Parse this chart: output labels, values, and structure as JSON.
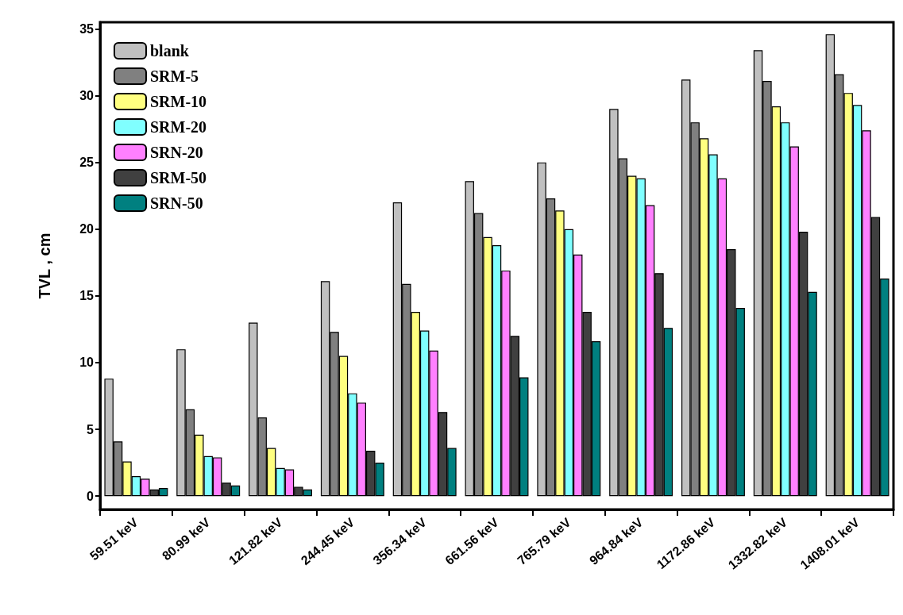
{
  "chart_data": {
    "type": "bar",
    "ylabel": "TVL , cm",
    "categories": [
      "59.51 keV",
      "80.99 keV",
      "121.82 keV",
      "244.45 keV",
      "356.34 keV",
      "661.56 keV",
      "765.79 keV",
      "964.84 keV",
      "1172.86 keV",
      "1332.82 keV",
      "1408.01 keV"
    ],
    "series": [
      {
        "name": "blank",
        "color": "#c0c0c0",
        "values": [
          8.8,
          11.0,
          13.0,
          16.1,
          22.0,
          23.6,
          25.0,
          29.0,
          31.2,
          33.4,
          34.6
        ]
      },
      {
        "name": "SRM-5",
        "color": "#808080",
        "values": [
          4.1,
          6.5,
          5.9,
          12.3,
          15.9,
          21.2,
          22.3,
          25.3,
          28.0,
          31.1,
          31.6
        ]
      },
      {
        "name": "SRM-10",
        "color": "#ffff80",
        "values": [
          2.6,
          4.6,
          3.6,
          10.5,
          13.8,
          19.4,
          21.4,
          24.0,
          26.8,
          29.2,
          30.2
        ]
      },
      {
        "name": "SRM-20",
        "color": "#80ffff",
        "values": [
          1.5,
          3.0,
          2.1,
          7.7,
          12.4,
          18.8,
          20.0,
          23.8,
          25.6,
          28.0,
          29.3
        ]
      },
      {
        "name": "SRN-20",
        "color": "#ff80ff",
        "values": [
          1.3,
          2.9,
          2.0,
          7.0,
          10.9,
          16.9,
          18.1,
          21.8,
          23.8,
          26.2,
          27.4
        ]
      },
      {
        "name": "SRM-50",
        "color": "#404040",
        "values": [
          0.5,
          1.0,
          0.7,
          3.4,
          6.3,
          12.0,
          13.8,
          16.7,
          18.5,
          19.8,
          20.9
        ]
      },
      {
        "name": "SRN-50",
        "color": "#008080",
        "values": [
          0.6,
          0.8,
          0.5,
          2.5,
          3.6,
          8.9,
          11.6,
          12.6,
          14.1,
          15.3,
          16.3
        ]
      }
    ],
    "ylim": [
      -1,
      35.5
    ],
    "yticks": [
      0,
      5,
      10,
      15,
      20,
      25,
      30,
      35
    ],
    "grid": false,
    "legend": "top left"
  }
}
